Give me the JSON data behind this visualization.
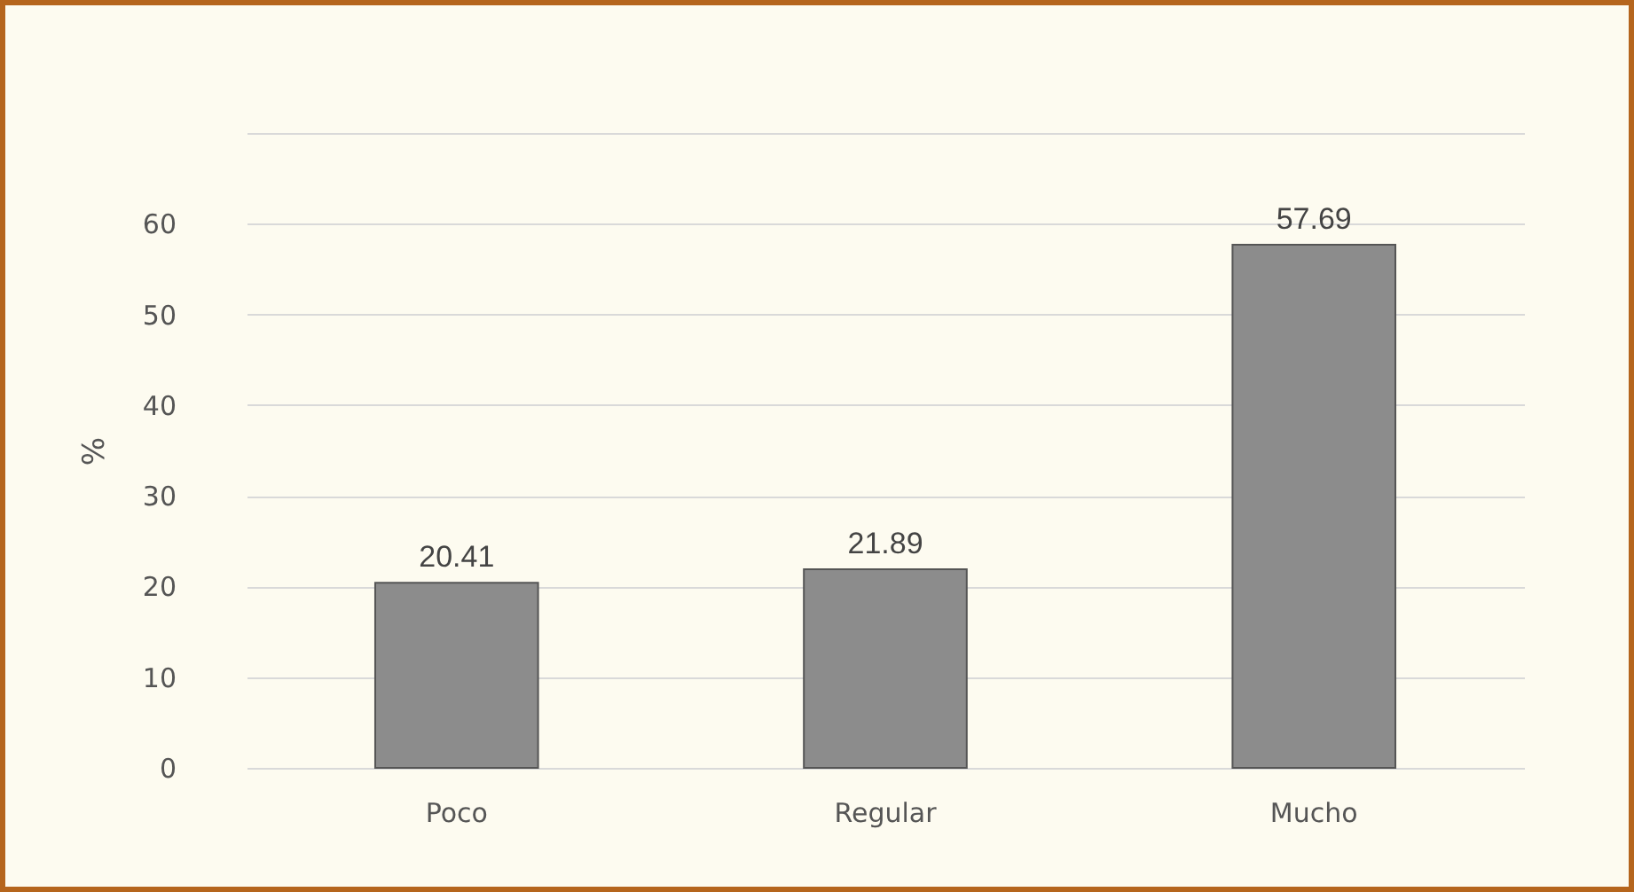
{
  "chart_data": {
    "type": "bar",
    "ylabel": "%",
    "categories": [
      "Poco",
      "Regular",
      "Mucho"
    ],
    "values": [
      20.41,
      21.89,
      57.69
    ],
    "color": "#8c8c8c",
    "ylim": [
      0,
      70
    ],
    "yticks": [
      0,
      10,
      20,
      30,
      40,
      50,
      60,
      {
        "value": 70,
        "label": null
      }
    ],
    "grid": "y",
    "data_labels": true
  }
}
